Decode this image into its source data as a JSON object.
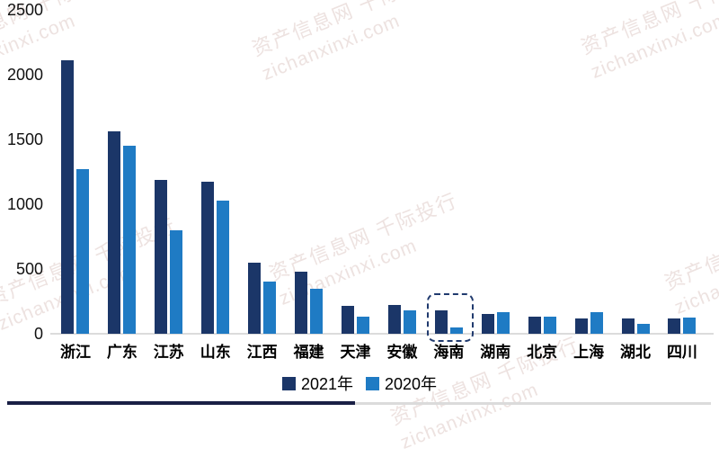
{
  "chart_data": {
    "type": "bar",
    "title": "",
    "xlabel": "",
    "ylabel": "",
    "categories": [
      "浙江",
      "广东",
      "江苏",
      "山东",
      "江西",
      "福建",
      "天津",
      "安徽",
      "海南",
      "湖南",
      "北京",
      "上海",
      "湖北",
      "四川"
    ],
    "series": [
      {
        "name": "2021年",
        "color": "#1B3668",
        "values": [
          2110,
          1560,
          1190,
          1175,
          550,
          480,
          215,
          220,
          180,
          155,
          130,
          115,
          120,
          115
        ]
      },
      {
        "name": "2020年",
        "color": "#1F7BC4",
        "values": [
          1270,
          1450,
          800,
          1030,
          400,
          350,
          135,
          180,
          50,
          170,
          135,
          165,
          75,
          125
        ]
      }
    ],
    "y_ticks": [
      0,
      500,
      1000,
      1500,
      2000,
      2500
    ],
    "ylim": [
      0,
      2500
    ],
    "grid": false,
    "legend_position": "bottom",
    "highlight": {
      "category": "海南",
      "series": "2021年",
      "style": "dashed-selection-box"
    }
  },
  "legend": {
    "items": [
      {
        "label": "2021年",
        "color": "#1B3668"
      },
      {
        "label": "2020年",
        "color": "#1F7BC4"
      }
    ]
  },
  "watermark": {
    "line1": "资产信息网 千际投行",
    "line2": "zichanxinxi.com",
    "color": "#EDE2E0"
  },
  "colors": {
    "bar_2021": "#1B3668",
    "bar_2020": "#1F7BC4",
    "axis_line": "#DCDCDC",
    "divider_dark": "#191F45",
    "divider_gray": "#DBDBDB",
    "highlight_border": "#203A6E"
  }
}
